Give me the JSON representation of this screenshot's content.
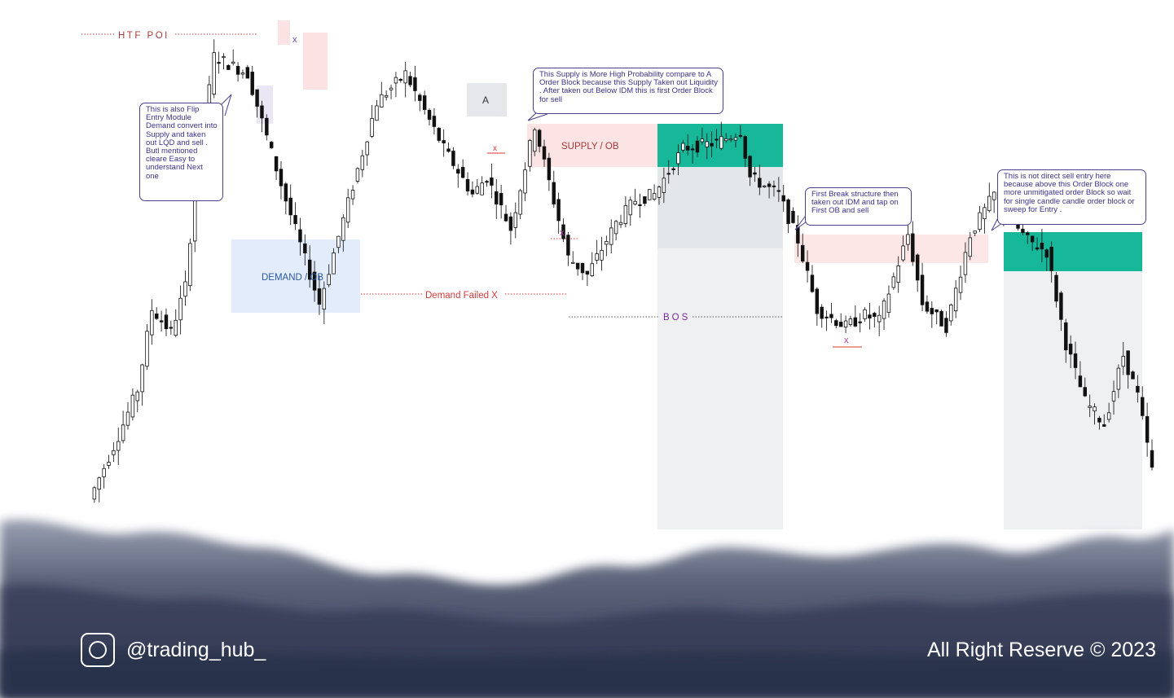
{
  "chart_data": {
    "type": "candlestick",
    "title": "",
    "xlabel": "",
    "ylabel": "",
    "axes_visible": false,
    "grid": false,
    "colors": {
      "up_candle": "#ffffff",
      "down_candle": "#111111",
      "wick": "#222222",
      "supply_zone": "#fce4e4",
      "demand_zone": "#e3ecfb",
      "entry_zone": "#17b89a",
      "range_shade": "#eef0f2"
    },
    "swing_points": [
      {
        "index": 0,
        "price": 5
      },
      {
        "index": 6,
        "price": 16
      },
      {
        "index": 10,
        "price": 24
      },
      {
        "index": 13,
        "price": 38
      },
      {
        "index": 17,
        "price": 34
      },
      {
        "index": 20,
        "price": 42
      },
      {
        "index": 22,
        "price": 59
      },
      {
        "index": 26,
        "price": 82
      },
      {
        "index": 33,
        "price": 79
      },
      {
        "index": 41,
        "price": 57
      },
      {
        "index": 48,
        "price": 39
      },
      {
        "index": 60,
        "price": 74
      },
      {
        "index": 66,
        "price": 79
      },
      {
        "index": 74,
        "price": 66
      },
      {
        "index": 80,
        "price": 58
      },
      {
        "index": 83,
        "price": 61
      },
      {
        "index": 88,
        "price": 52
      },
      {
        "index": 93,
        "price": 70
      },
      {
        "index": 100,
        "price": 47
      },
      {
        "index": 104,
        "price": 44
      },
      {
        "index": 110,
        "price": 53
      },
      {
        "index": 114,
        "price": 57
      },
      {
        "index": 118,
        "price": 58
      },
      {
        "index": 124,
        "price": 66
      },
      {
        "index": 131,
        "price": 67
      },
      {
        "index": 136,
        "price": 69
      },
      {
        "index": 138,
        "price": 61
      },
      {
        "index": 144,
        "price": 58
      },
      {
        "index": 148,
        "price": 50
      },
      {
        "index": 152,
        "price": 38
      },
      {
        "index": 158,
        "price": 35
      },
      {
        "index": 162,
        "price": 37
      },
      {
        "index": 165,
        "price": 36
      },
      {
        "index": 171,
        "price": 51
      },
      {
        "index": 174,
        "price": 39
      },
      {
        "index": 179,
        "price": 35
      },
      {
        "index": 184,
        "price": 51
      },
      {
        "index": 189,
        "price": 58
      },
      {
        "index": 192,
        "price": 54
      },
      {
        "index": 196,
        "price": 50
      },
      {
        "index": 200,
        "price": 48
      },
      {
        "index": 204,
        "price": 32
      },
      {
        "index": 208,
        "price": 22
      },
      {
        "index": 212,
        "price": 18
      },
      {
        "index": 216,
        "price": 30
      },
      {
        "index": 219,
        "price": 23
      },
      {
        "index": 222,
        "price": 10
      }
    ]
  },
  "annotations": {
    "htf_poi": "HTF POI",
    "x_mark": "x",
    "a_label": "A",
    "supply_ob": "SUPPLY / OB",
    "demand_ob": "DEMAND / OB",
    "demand_failed": "Demand Failed X",
    "bos": "BOS",
    "note_flip": "This is also Flip Entry Module Demand convert into Supply and taken out LQD and sell . Butl mentioned cleare Easy to understand Next one",
    "note_supply": "This Supply is More High Probability compare to A  Order Block because this Supply Taken out Liquidity . After taken out Below IDM this is first Order Block for sell",
    "note_break": "First  Break structure then taken out IDM and tap on First OB and sell",
    "note_direct": "This is not direct sell entry here because above this Order Block one more unmitigated order Block so wait for single candle candle order block or sweep for Entry ."
  },
  "footer": {
    "handle": "@trading_hub_",
    "rights": "All Right Reserve © 2023",
    "icon": "instagram-icon"
  }
}
